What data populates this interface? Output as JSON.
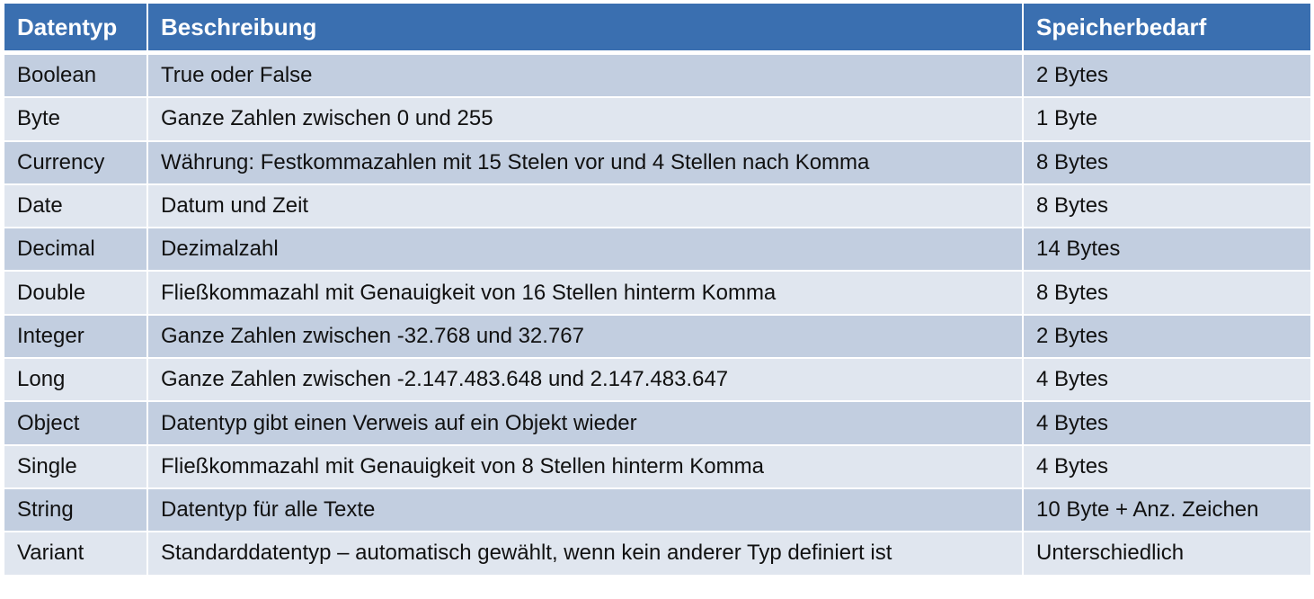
{
  "table": {
    "headers": [
      "Datentyp",
      "Beschreibung",
      "Speicherbedarf"
    ],
    "rows": [
      [
        "Boolean",
        "True oder False",
        "2 Bytes"
      ],
      [
        "Byte",
        "Ganze Zahlen zwischen 0 und 255",
        "1 Byte"
      ],
      [
        "Currency",
        "Währung: Festkommazahlen mit 15 Stelen vor und 4 Stellen nach Komma",
        "8 Bytes"
      ],
      [
        "Date",
        "Datum und Zeit",
        "8 Bytes"
      ],
      [
        "Decimal",
        "Dezimalzahl",
        "14 Bytes"
      ],
      [
        "Double",
        "Fließkommazahl mit Genauigkeit von 16 Stellen hinterm Komma",
        "8 Bytes"
      ],
      [
        "Integer",
        "Ganze Zahlen zwischen -32.768 und 32.767",
        "2 Bytes"
      ],
      [
        "Long",
        "Ganze Zahlen zwischen -2.147.483.648 und 2.147.483.647",
        "4 Bytes"
      ],
      [
        "Object",
        "Datentyp gibt einen Verweis auf ein Objekt wieder",
        "4 Bytes"
      ],
      [
        "Single",
        "Fließkommazahl mit Genauigkeit von 8 Stellen hinterm Komma",
        "4 Bytes"
      ],
      [
        "String",
        "Datentyp für alle Texte",
        "10 Byte + Anz. Zeichen"
      ],
      [
        "Variant",
        "Standarddatentyp – automatisch gewählt, wenn kein anderer Typ definiert ist",
        "Unterschiedlich"
      ]
    ]
  },
  "colors": {
    "header_bg": "#3a6fb0",
    "row_odd_bg": "#c2cee0",
    "row_even_bg": "#e0e6ef",
    "border": "#ffffff"
  }
}
